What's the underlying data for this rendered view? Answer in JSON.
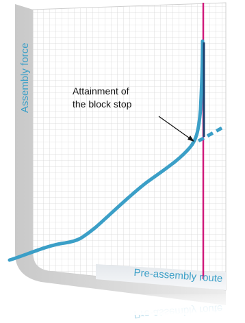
{
  "y_axis_label": "Assembly force",
  "x_axis_label": "Pre-assembly route",
  "annotation": {
    "lines": [
      "Attainment of",
      "the block stop"
    ]
  }
}
